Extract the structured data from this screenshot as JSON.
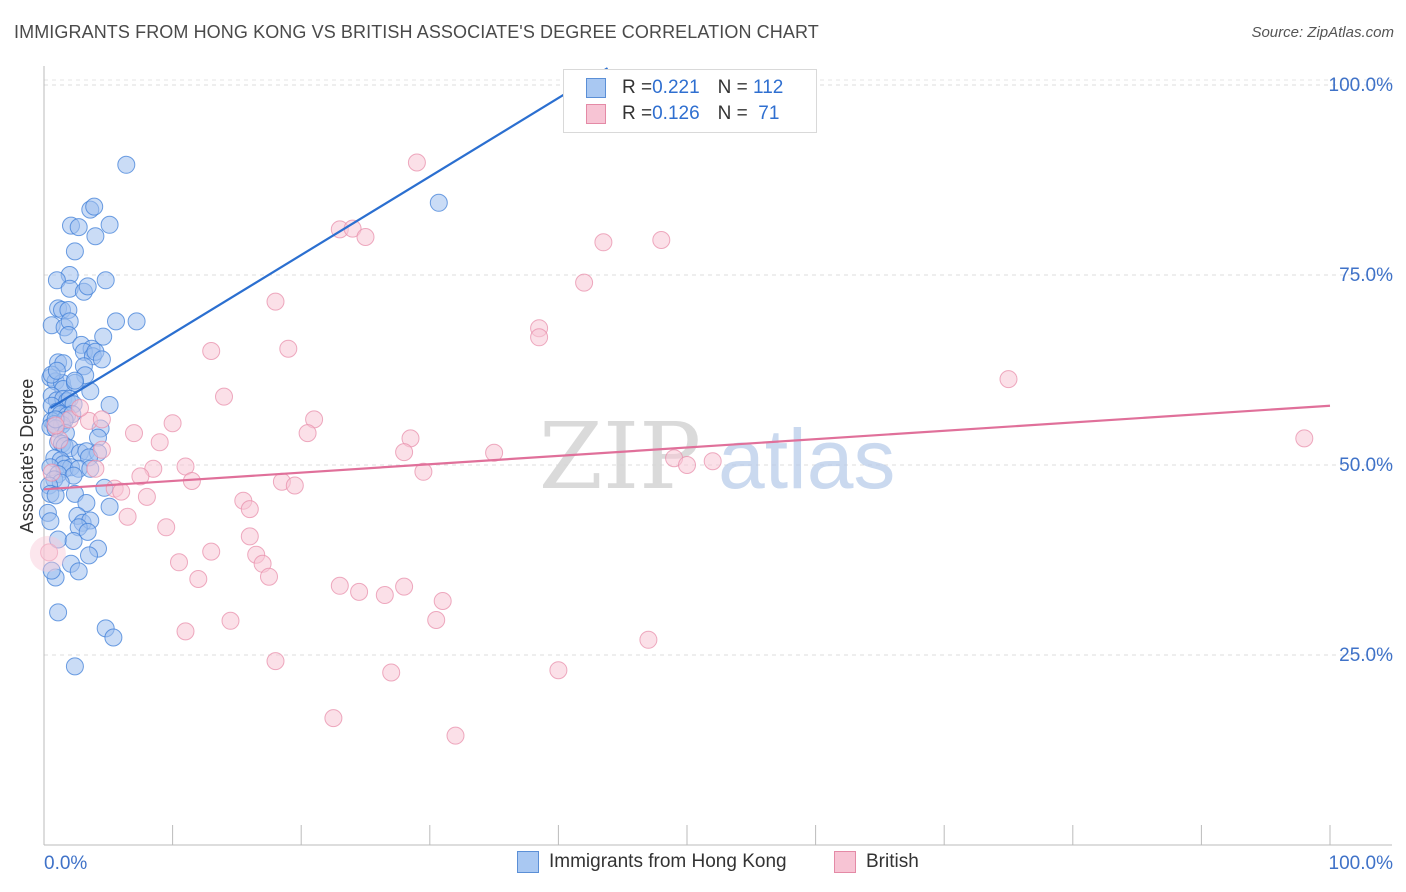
{
  "header": {
    "title": "IMMIGRANTS FROM HONG KONG VS BRITISH ASSOCIATE'S DEGREE CORRELATION CHART",
    "source": "Source: ZipAtlas.com"
  },
  "legend": {
    "rows": [
      {
        "r_label": "R = ",
        "r_value": "0.221",
        "n_label": "N = ",
        "n_value": "112",
        "color": "#a9c8f2",
        "border": "#5b8fd6"
      },
      {
        "r_label": "R = ",
        "r_value": "0.126",
        "n_label": "N = ",
        "n_value": " 71",
        "color": "#f7c4d4",
        "border": "#e48aa6"
      }
    ],
    "bottom": [
      {
        "label": "Immigrants from Hong Kong",
        "color": "#a9c8f2",
        "border": "#5b8fd6"
      },
      {
        "label": "British",
        "color": "#f7c4d4",
        "border": "#e48aa6"
      }
    ]
  },
  "colors": {
    "blue_line": "#2b6fd0",
    "pink_line": "#e0709a",
    "blue_dot_fill": "#9fc0ee",
    "blue_dot_stroke": "#3f7fd8",
    "pink_dot_fill": "#f8c7d6",
    "pink_dot_stroke": "#e88fab",
    "axis_label": "#3f72c8",
    "watermark": "#c8c8c8"
  },
  "chart_data": {
    "type": "scatter",
    "title": "IMMIGRANTS FROM HONG KONG VS BRITISH ASSOCIATE'S DEGREE CORRELATION CHART",
    "xlabel": "",
    "ylabel": "Associate's Degree",
    "xlim": [
      0,
      100
    ],
    "ylim": [
      0,
      102.5
    ],
    "x_tick_labels": [
      "0.0%",
      "100.0%"
    ],
    "y_ticks": [
      25,
      50,
      75,
      100
    ],
    "y_tick_labels": [
      "25.0%",
      "50.0%",
      "75.0%",
      "100.0%"
    ],
    "grid": true,
    "watermark": {
      "zip": "ZIP",
      "atlas": "atlas"
    },
    "series": [
      {
        "name": "Immigrants from Hong Kong",
        "R": 0.221,
        "N": 112,
        "trend": {
          "x": [
            0.5,
            40.5
          ],
          "y": [
            57.5,
            98.8
          ]
        },
        "points": [
          [
            6.4,
            89.5
          ],
          [
            2.1,
            81.5
          ],
          [
            2.7,
            81.3
          ],
          [
            3.6,
            83.6
          ],
          [
            3.9,
            84.0
          ],
          [
            5.1,
            81.6
          ],
          [
            4.0,
            80.1
          ],
          [
            2.4,
            78.1
          ],
          [
            2.0,
            75.0
          ],
          [
            1.0,
            74.3
          ],
          [
            2.0,
            73.2
          ],
          [
            4.8,
            74.3
          ],
          [
            3.1,
            72.8
          ],
          [
            3.4,
            73.5
          ],
          [
            1.1,
            70.6
          ],
          [
            1.4,
            70.4
          ],
          [
            1.9,
            70.4
          ],
          [
            5.6,
            68.9
          ],
          [
            7.2,
            68.9
          ],
          [
            0.6,
            68.4
          ],
          [
            1.6,
            68.1
          ],
          [
            2.0,
            68.9
          ],
          [
            1.9,
            67.1
          ],
          [
            4.6,
            66.9
          ],
          [
            2.9,
            65.8
          ],
          [
            3.7,
            65.3
          ],
          [
            3.1,
            64.9
          ],
          [
            3.8,
            64.3
          ],
          [
            4.0,
            64.9
          ],
          [
            4.5,
            63.9
          ],
          [
            1.1,
            63.5
          ],
          [
            1.5,
            63.4
          ],
          [
            3.1,
            63.0
          ],
          [
            3.2,
            61.8
          ],
          [
            0.5,
            61.5
          ],
          [
            0.9,
            61.0
          ],
          [
            1.4,
            60.8
          ],
          [
            1.5,
            60.0
          ],
          [
            2.4,
            60.8
          ],
          [
            2.4,
            61.1
          ],
          [
            3.6,
            59.7
          ],
          [
            0.6,
            59.1
          ],
          [
            1.0,
            58.5
          ],
          [
            1.5,
            58.7
          ],
          [
            1.8,
            58.4
          ],
          [
            2.0,
            58.7
          ],
          [
            2.3,
            58.0
          ],
          [
            0.6,
            57.8
          ],
          [
            1.0,
            57.0
          ],
          [
            1.3,
            56.7
          ],
          [
            1.8,
            56.5
          ],
          [
            2.2,
            56.7
          ],
          [
            5.1,
            57.9
          ],
          [
            0.6,
            55.8
          ],
          [
            0.8,
            55.4
          ],
          [
            1.4,
            55.3
          ],
          [
            1.6,
            55.9
          ],
          [
            0.5,
            55.0
          ],
          [
            0.9,
            54.8
          ],
          [
            1.7,
            54.2
          ],
          [
            4.4,
            54.8
          ],
          [
            4.2,
            53.6
          ],
          [
            1.1,
            53.0
          ],
          [
            1.4,
            52.8
          ],
          [
            1.6,
            52.5
          ],
          [
            2.0,
            52.2
          ],
          [
            2.8,
            51.6
          ],
          [
            3.3,
            51.8
          ],
          [
            4.2,
            51.6
          ],
          [
            3.5,
            51.0
          ],
          [
            0.8,
            50.9
          ],
          [
            1.3,
            50.6
          ],
          [
            1.5,
            50.1
          ],
          [
            2.1,
            49.7
          ],
          [
            0.5,
            49.7
          ],
          [
            1.6,
            49.5
          ],
          [
            2.7,
            49.5
          ],
          [
            3.6,
            49.5
          ],
          [
            1.1,
            48.8
          ],
          [
            2.3,
            48.6
          ],
          [
            0.8,
            48.1
          ],
          [
            1.3,
            47.7
          ],
          [
            0.4,
            47.3
          ],
          [
            4.7,
            47.0
          ],
          [
            2.4,
            46.2
          ],
          [
            0.5,
            46.2
          ],
          [
            0.9,
            46.0
          ],
          [
            3.3,
            45.0
          ],
          [
            5.1,
            44.5
          ],
          [
            0.3,
            43.7
          ],
          [
            2.6,
            43.3
          ],
          [
            0.5,
            42.6
          ],
          [
            3.0,
            42.4
          ],
          [
            3.6,
            42.7
          ],
          [
            2.7,
            41.8
          ],
          [
            3.4,
            41.2
          ],
          [
            1.1,
            40.2
          ],
          [
            2.3,
            40.0
          ],
          [
            4.2,
            39.0
          ],
          [
            3.5,
            38.1
          ],
          [
            2.1,
            37.0
          ],
          [
            2.7,
            36.0
          ],
          [
            0.9,
            35.2
          ],
          [
            0.6,
            36.1
          ],
          [
            4.8,
            28.5
          ],
          [
            5.4,
            27.3
          ],
          [
            2.4,
            23.5
          ],
          [
            1.1,
            30.6
          ],
          [
            0.6,
            61.9
          ],
          [
            1.0,
            62.4
          ],
          [
            30.7,
            84.5
          ],
          [
            0.9,
            56.0
          ]
        ]
      },
      {
        "name": "British",
        "R": 0.126,
        "N": 71,
        "trend": {
          "x": [
            0.0,
            100.0
          ],
          "y": [
            46.8,
            57.8
          ]
        },
        "points": [
          [
            29.0,
            89.8
          ],
          [
            23.0,
            81.0
          ],
          [
            24.0,
            81.1
          ],
          [
            25.0,
            80.0
          ],
          [
            43.5,
            79.3
          ],
          [
            48.0,
            79.6
          ],
          [
            42.0,
            74.0
          ],
          [
            18.0,
            71.5
          ],
          [
            38.5,
            68.0
          ],
          [
            38.5,
            66.8
          ],
          [
            13.0,
            65.0
          ],
          [
            19.0,
            65.3
          ],
          [
            75.0,
            61.3
          ],
          [
            14.0,
            59.0
          ],
          [
            2.0,
            56.0
          ],
          [
            3.5,
            55.8
          ],
          [
            4.5,
            56.0
          ],
          [
            10.0,
            55.5
          ],
          [
            21.0,
            56.0
          ],
          [
            20.5,
            54.2
          ],
          [
            7.0,
            54.2
          ],
          [
            28.5,
            53.5
          ],
          [
            9.0,
            53.0
          ],
          [
            4.5,
            52.0
          ],
          [
            28.0,
            51.7
          ],
          [
            35.0,
            51.6
          ],
          [
            49.0,
            50.9
          ],
          [
            50.0,
            50.0
          ],
          [
            52.0,
            50.5
          ],
          [
            98.0,
            53.5
          ],
          [
            8.5,
            49.5
          ],
          [
            11.0,
            49.8
          ],
          [
            29.5,
            49.1
          ],
          [
            4.0,
            49.5
          ],
          [
            7.5,
            48.5
          ],
          [
            11.5,
            47.9
          ],
          [
            18.5,
            47.8
          ],
          [
            19.5,
            47.3
          ],
          [
            5.5,
            46.9
          ],
          [
            6.0,
            46.5
          ],
          [
            8.0,
            45.8
          ],
          [
            15.5,
            45.3
          ],
          [
            16.0,
            44.2
          ],
          [
            6.5,
            43.2
          ],
          [
            9.5,
            41.8
          ],
          [
            16.0,
            40.6
          ],
          [
            13.0,
            38.6
          ],
          [
            16.5,
            38.2
          ],
          [
            10.5,
            37.2
          ],
          [
            17.0,
            37.0
          ],
          [
            17.5,
            35.3
          ],
          [
            12.0,
            35.0
          ],
          [
            23.0,
            34.1
          ],
          [
            28.0,
            34.0
          ],
          [
            24.5,
            33.3
          ],
          [
            26.5,
            32.9
          ],
          [
            31.0,
            32.1
          ],
          [
            14.5,
            29.5
          ],
          [
            30.5,
            29.6
          ],
          [
            11.0,
            28.1
          ],
          [
            47.0,
            27.0
          ],
          [
            18.0,
            24.2
          ],
          [
            27.0,
            22.7
          ],
          [
            40.0,
            23.0
          ],
          [
            22.5,
            16.7
          ],
          [
            32.0,
            14.4
          ],
          [
            0.4,
            38.5
          ],
          [
            1.2,
            53.3
          ],
          [
            0.6,
            49.0
          ],
          [
            2.8,
            57.5
          ],
          [
            0.9,
            55.2
          ]
        ]
      }
    ]
  }
}
